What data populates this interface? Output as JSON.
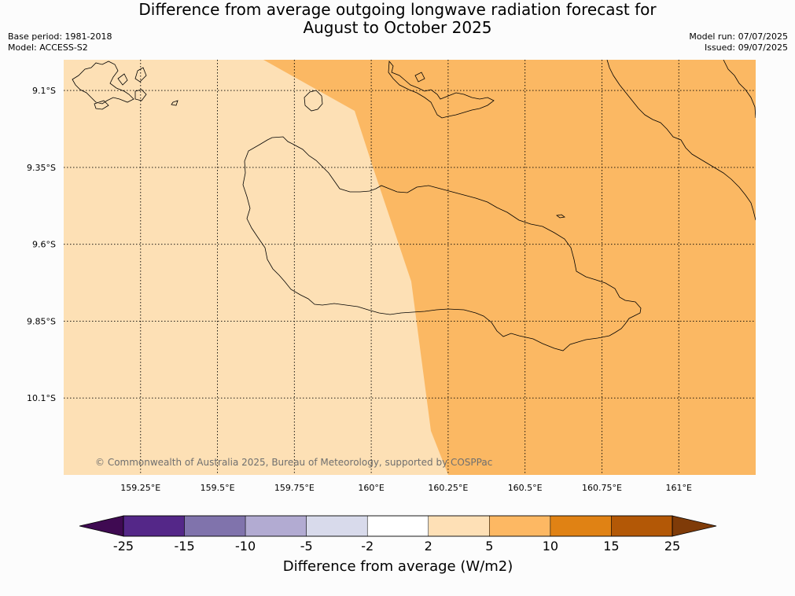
{
  "header": {
    "title_line1": "Difference from average outgoing longwave radiation forecast for",
    "title_line2": "August to October 2025",
    "base_period": "Base period: 1981-2018",
    "model": "Model: ACCESS-S2",
    "model_run": "Model run: 07/07/2025",
    "issued": "Issued: 09/07/2025"
  },
  "map": {
    "latitude_labels": [
      "9.1°S",
      "9.35°S",
      "9.6°S",
      "9.85°S",
      "10.1°S"
    ],
    "longitude_labels": [
      "159.25°E",
      "159.5°E",
      "159.75°E",
      "160°E",
      "160.25°E",
      "160.5°E",
      "160.75°E",
      "161°E"
    ],
    "lat_values": [
      -9.1,
      -9.35,
      -9.6,
      -9.85,
      -10.1
    ],
    "lon_values": [
      159.25,
      159.5,
      159.75,
      160.0,
      160.25,
      160.5,
      160.75,
      161.0
    ],
    "extent": {
      "lon": [
        159.0,
        161.25
      ],
      "lat": [
        -10.35,
        -9.0
      ]
    },
    "regions": [
      {
        "category": "2 to 5",
        "color": "#fde0b5"
      },
      {
        "category": "5 to 10",
        "color": "#fbb863"
      }
    ],
    "copyright": "© Commonwealth of Australia 2025, Bureau of Meteorology, supported by COSPPac"
  },
  "colorbar": {
    "label": "Difference from average (W/m2)",
    "ticks": [
      "-25",
      "-15",
      "-10",
      "-5",
      "-2",
      "2",
      "5",
      "10",
      "15",
      "25"
    ],
    "under_color": "#3f0a52",
    "over_color": "#7f3b08",
    "colors": [
      "#542788",
      "#8073ac",
      "#b2abd2",
      "#d8daeb",
      "#ffffff",
      "#fee0b6",
      "#fdb863",
      "#e08214",
      "#b35806"
    ]
  }
}
